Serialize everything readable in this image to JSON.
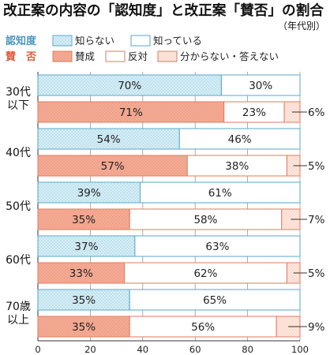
{
  "chart_data": {
    "type": "bar",
    "orientation": "horizontal",
    "stacked": true,
    "title": "改正案の内容の「認知度」と改正案「賛否」の割合",
    "subtitle": "（年代別）",
    "xlim": [
      0,
      100
    ],
    "xticks": [
      0,
      20,
      40,
      60,
      80,
      100
    ],
    "grid": "vertical",
    "legend": {
      "position": "top",
      "groups": [
        {
          "label": "認知度",
          "color": "#5aa6c9",
          "items": [
            {
              "name": "知らない",
              "color": "#cfe9f2",
              "pattern": "dots"
            },
            {
              "name": "知っている",
              "color": "#ffffff"
            }
          ]
        },
        {
          "label": "賛　否",
          "color": "#e05a3a",
          "items": [
            {
              "name": "賛成",
              "color": "#f3a58e"
            },
            {
              "name": "反対",
              "color": "#ffffff"
            },
            {
              "name": "分からない・答えない",
              "color": "#fbe0d5"
            }
          ]
        }
      ]
    },
    "categories": [
      "30代\n以下",
      "40代",
      "50代",
      "60代",
      "70歳\n以上"
    ],
    "category_lines": [
      [
        "30代",
        "以下"
      ],
      [
        "40代"
      ],
      [
        "50代"
      ],
      [
        "60代"
      ],
      [
        "70歳",
        "以上"
      ]
    ],
    "awareness": {
      "series": [
        {
          "name": "知らない",
          "values": [
            70,
            54,
            39,
            37,
            35
          ]
        },
        {
          "name": "知っている",
          "values": [
            30,
            46,
            61,
            63,
            65
          ]
        }
      ]
    },
    "approval": {
      "series": [
        {
          "name": "賛成",
          "values": [
            71,
            57,
            35,
            33,
            35
          ]
        },
        {
          "name": "反対",
          "values": [
            23,
            38,
            58,
            62,
            56
          ]
        },
        {
          "name": "分からない・答えない",
          "values": [
            6,
            5,
            7,
            5,
            9
          ]
        }
      ]
    },
    "value_suffix": "%"
  }
}
